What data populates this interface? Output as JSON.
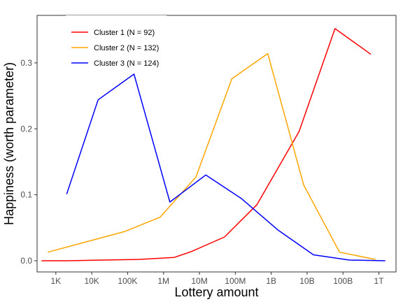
{
  "chart_data": {
    "type": "line",
    "xlabel": "Lottery amount",
    "ylabel": "Happiness (worth parameter)",
    "x_scale": "log",
    "x_ticks": [
      {
        "value": 1000,
        "label": "1K"
      },
      {
        "value": 10000,
        "label": "10K"
      },
      {
        "value": 100000,
        "label": "100K"
      },
      {
        "value": 1000000,
        "label": "1M"
      },
      {
        "value": 10000000,
        "label": "10M"
      },
      {
        "value": 100000000,
        "label": "100M"
      },
      {
        "value": 1000000000,
        "label": "1B"
      },
      {
        "value": 10000000000,
        "label": "10B"
      },
      {
        "value": 100000000000,
        "label": "100B"
      },
      {
        "value": 1000000000000,
        "label": "1T"
      }
    ],
    "y_ticks": [
      {
        "value": 0.0,
        "label": "0.0"
      },
      {
        "value": 0.1,
        "label": "0.1"
      },
      {
        "value": 0.2,
        "label": "0.2"
      },
      {
        "value": 0.3,
        "label": "0.3"
      }
    ],
    "xlim": [
      300,
      3000000000000
    ],
    "ylim": [
      -0.017,
      0.372
    ],
    "grid": false,
    "legend_position": "top-left",
    "series": [
      {
        "name": "Cluster 1 (N = 92)",
        "color": "#ff0000",
        "x": [
          400,
          2000,
          20000,
          200000,
          2000000,
          6000000,
          50000000,
          400000000,
          6000000000,
          60000000000,
          600000000000
        ],
        "y": [
          0.0,
          0.0,
          0.001,
          0.002,
          0.005,
          0.014,
          0.036,
          0.085,
          0.196,
          0.352,
          0.313
        ]
      },
      {
        "name": "Cluster 2 (N = 132)",
        "color": "#ffa500",
        "x": [
          600,
          80000,
          800000,
          8000000,
          80000000,
          800000000,
          8000000000,
          80000000000,
          800000000000
        ],
        "y": [
          0.013,
          0.044,
          0.066,
          0.127,
          0.276,
          0.314,
          0.115,
          0.013,
          0.002
        ]
      },
      {
        "name": "Cluster 3 (N = 124)",
        "color": "#0000ff",
        "x": [
          2000,
          15000,
          150000,
          1500000,
          15000000,
          150000000,
          1500000000,
          15000000000,
          150000000000,
          1500000000000
        ],
        "y": [
          0.101,
          0.244,
          0.283,
          0.089,
          0.13,
          0.094,
          0.047,
          0.009,
          0.001,
          0.0
        ]
      }
    ]
  }
}
